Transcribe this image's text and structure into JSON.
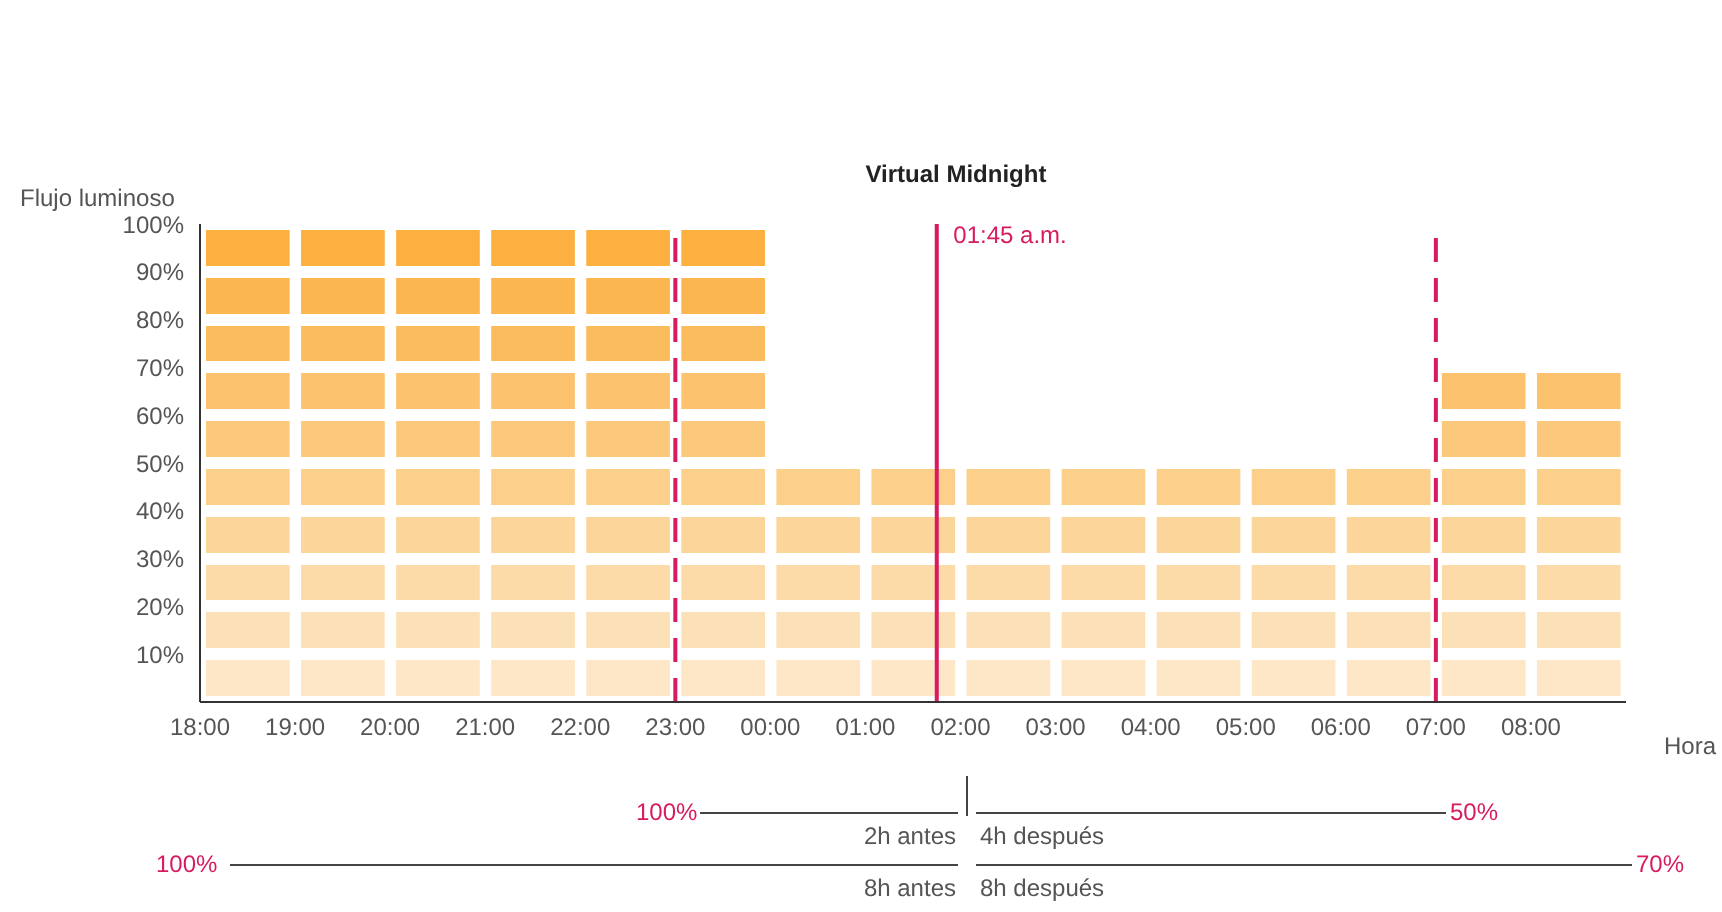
{
  "chart_data": {
    "type": "histogram",
    "title": "Virtual Midnight",
    "ylabel": "Flujo luminoso",
    "xlabel": "Hora",
    "bins": [
      "--01-01T18:00",
      "--01-01T19:00",
      "--01-01T20:00",
      "--01-01T21:00",
      "--01-01T22:00",
      "--01-01T23:00",
      "--01-02T00:00",
      "--01-02T01:00",
      "--01-02T02:00",
      "--01-02T03:00",
      "--01-02T04:00",
      "--01-02T05:00",
      "--01-02T06:00",
      "--01-02T07:00",
      "--01-02T08:00",
      "--01-02T09:00"
    ],
    "values": [
      100,
      100,
      100,
      100,
      100,
      100,
      50,
      50,
      50,
      50,
      50,
      50,
      50,
      70,
      70
    ],
    "color": "#fbb040",
    "xlim": [
      "--01-01T18:00",
      "--01-02T09:00"
    ],
    "xticks": [
      {
        "value": "--01-01T18:00",
        "label": "18:00"
      },
      {
        "value": "--01-01T19:00",
        "label": "19:00"
      },
      {
        "value": "--01-01T20:00",
        "label": "20:00"
      },
      {
        "value": "--01-01T21:00",
        "label": "21:00"
      },
      {
        "value": "--01-01T22:00",
        "label": "22:00"
      },
      {
        "value": "--01-01T23:00",
        "label": "23:00"
      },
      {
        "value": "--01-02T00:00",
        "label": "00:00"
      },
      {
        "value": "--01-02T01:00",
        "label": "01:00"
      },
      {
        "value": "--01-02T02:00",
        "label": "02:00"
      },
      {
        "value": "--01-02T03:00",
        "label": "03:00"
      },
      {
        "value": "--01-02T04:00",
        "label": "04:00"
      },
      {
        "value": "--01-02T05:00",
        "label": "05:00"
      },
      {
        "value": "--01-02T06:00",
        "label": "06:00"
      },
      {
        "value": "--01-02T07:00",
        "label": "07:00"
      },
      {
        "value": "--01-02T08:00",
        "label": "08:00"
      }
    ],
    "ylim": [
      0,
      100
    ],
    "yticks": [
      {
        "value": 10,
        "label": "10%"
      },
      {
        "value": 20,
        "label": "20%"
      },
      {
        "value": 30,
        "label": "30%"
      },
      {
        "value": 40,
        "label": "40%"
      },
      {
        "value": 50,
        "label": "50%"
      },
      {
        "value": 60,
        "label": "60%"
      },
      {
        "value": 70,
        "label": "70%"
      },
      {
        "value": 80,
        "label": "80%"
      },
      {
        "value": 90,
        "label": "90%"
      },
      {
        "value": 100,
        "label": "100%"
      }
    ],
    "ref_lines": [
      {
        "axis": "x",
        "value": "--01-01T23:00",
        "color": "#d81b60",
        "line_style": "dashed"
      },
      {
        "axis": "x",
        "value": "--01-02T01:45",
        "label": "01:45 a.m.",
        "color": "#d81b60",
        "line_style": "solid"
      },
      {
        "axis": "x",
        "value": "--01-02T07:00",
        "color": "#d81b60",
        "line_style": "dashed"
      }
    ],
    "annotations": [
      "100%",
      "2h antes",
      "4h después",
      "50%",
      "100%",
      "8h antes",
      "8h después",
      "70%"
    ],
    "grid": false,
    "legend": false
  }
}
